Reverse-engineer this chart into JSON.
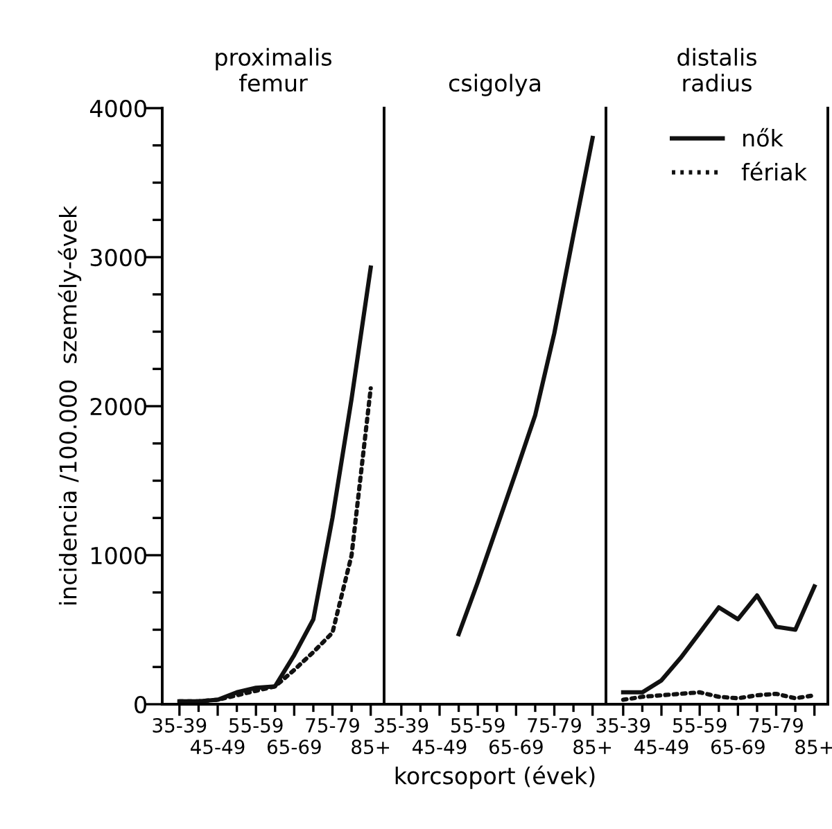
{
  "chart_data": [
    {
      "type": "line",
      "title": "proximalis\nfemur",
      "ylabel": "incidencia /100.000  személy-évek",
      "categories": [
        "35-39",
        null,
        "45-49",
        null,
        "55-59",
        null,
        "65-69",
        null,
        "75-79",
        null,
        "85+"
      ],
      "ylim": [
        0,
        4000
      ],
      "yticks": [
        0,
        {
          "value": 250,
          "label": null
        },
        {
          "value": 500,
          "label": null
        },
        {
          "value": 750,
          "label": null
        },
        1000,
        {
          "value": 1250,
          "label": null
        },
        {
          "value": 1500,
          "label": null
        },
        {
          "value": 1750,
          "label": null
        },
        2000,
        {
          "value": 2250,
          "label": null
        },
        {
          "value": 2500,
          "label": null
        },
        {
          "value": 2750,
          "label": null
        },
        3000,
        {
          "value": 3250,
          "label": null
        },
        {
          "value": 3500,
          "label": null
        },
        {
          "value": 3750,
          "label": null
        },
        4000
      ],
      "series": [
        {
          "color": "#111111",
          "line_style": "solid",
          "values": [
            20,
            20,
            30,
            80,
            110,
            120,
            330,
            570,
            1250,
            2050,
            2930
          ]
        },
        {
          "color": "#111111",
          "line_style": "dotted",
          "values": [
            20,
            20,
            30,
            60,
            90,
            120,
            230,
            350,
            480,
            1000,
            2120
          ]
        }
      ]
    },
    {
      "type": "line",
      "title": "csigolya",
      "xlabel": "korcsoport (évek)",
      "tick_labels": "x",
      "categories": [
        "35-39",
        null,
        "45-49",
        null,
        "55-59",
        null,
        "65-69",
        null,
        "75-79",
        null,
        "85+"
      ],
      "ylim": [
        0,
        4000
      ],
      "series": [
        {
          "color": "#111111",
          "line_style": "solid",
          "values": [
            null,
            null,
            null,
            470,
            820,
            1190,
            1560,
            1940,
            2490,
            3150,
            3800
          ]
        }
      ]
    },
    {
      "type": "line",
      "title": "distalis\nradius",
      "tick_labels": "x",
      "legend": "top right",
      "categories": [
        "35-39",
        null,
        "45-49",
        null,
        "55-59",
        null,
        "65-69",
        null,
        "75-79",
        null,
        "85+"
      ],
      "ylim": [
        0,
        4000
      ],
      "series": [
        {
          "name": "nők",
          "color": "#111111",
          "line_style": "solid",
          "values": [
            80,
            80,
            160,
            310,
            480,
            650,
            570,
            730,
            520,
            500,
            790
          ]
        },
        {
          "name": "fériak",
          "color": "#111111",
          "line_style": "dotted",
          "values": [
            30,
            50,
            60,
            70,
            80,
            50,
            40,
            60,
            70,
            40,
            60
          ]
        }
      ]
    }
  ]
}
